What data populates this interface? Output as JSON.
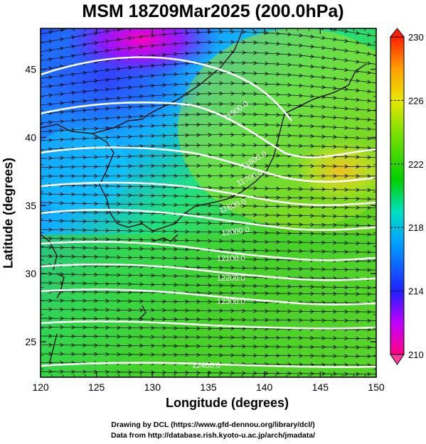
{
  "title": "MSM 18Z09Mar2025 (200.0hPa)",
  "axes": {
    "xlabel": "Longitude (degrees)",
    "ylabel": "Latitude  (degrees)",
    "xlim": [
      120,
      150
    ],
    "ylim": [
      22.4,
      48
    ],
    "xticks": [
      "120",
      "125",
      "130",
      "135",
      "140",
      "145",
      "150"
    ],
    "yticks": [
      "25",
      "30",
      "35",
      "40",
      "45"
    ]
  },
  "colorbar": {
    "min": 210,
    "max": 230,
    "ticks": [
      "230",
      "226",
      "222",
      "218",
      "214",
      "210"
    ],
    "colors": [
      "#ff0080",
      "#c000ff",
      "#2020ff",
      "#00a0ff",
      "#00e0c0",
      "#00d000",
      "#80e000",
      "#e8e800",
      "#ffa000",
      "#ff2000"
    ]
  },
  "contour_labels": [
    "11600.0",
    "11700.0",
    "11800.0",
    "11900.0",
    "12000.0",
    "12100.0",
    "12200.0",
    "12300.0",
    "12400.0"
  ],
  "footer": {
    "line1": "Drawing by DCL (https://www.gfd-dennou.org/library/dcl/)",
    "line2": "Data from http://database.rish.kyoto-u.ac.jp/arch/jmadata/"
  }
}
